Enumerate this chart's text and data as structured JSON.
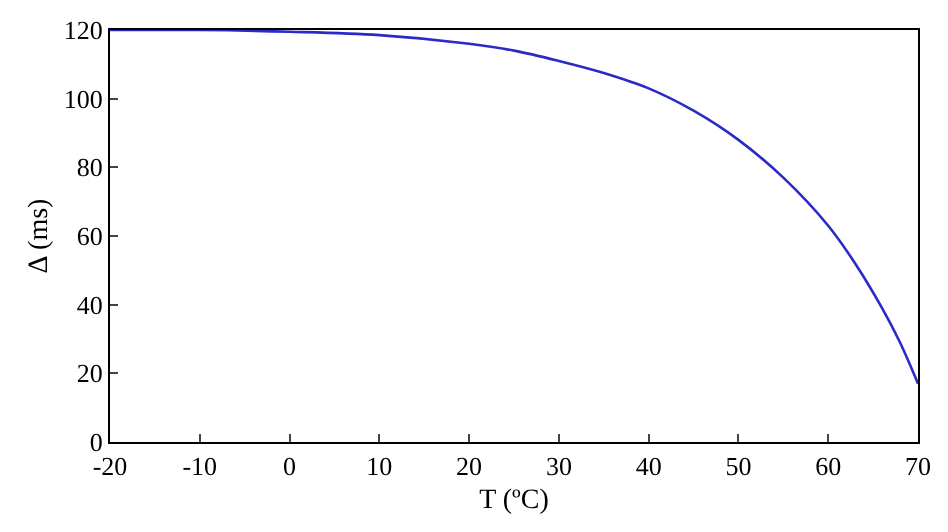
{
  "chart_data": {
    "type": "line",
    "xlabel": "T (ºC)",
    "ylabel": "Δ (ms)",
    "x": [
      -20,
      -10,
      0,
      10,
      20,
      25,
      30,
      35,
      40,
      45,
      50,
      55,
      60,
      63,
      66,
      68,
      70
    ],
    "series": [
      {
        "color": "#2a2ac8",
        "values": [
          120,
          120,
          119.5,
          118.5,
          116,
          114,
          111,
          107.5,
          103,
          96.5,
          88,
          77,
          63,
          52,
          39,
          29,
          17
        ]
      }
    ],
    "xlim": [
      -20,
      70
    ],
    "xticks": [
      -20,
      -10,
      0,
      10,
      20,
      30,
      40,
      50,
      60,
      70
    ],
    "ylim": [
      0,
      120
    ],
    "yticks": [
      0,
      20,
      40,
      60,
      80,
      100,
      120
    ],
    "grid": false,
    "legend": false,
    "marker": "none",
    "line_style": "solid"
  }
}
